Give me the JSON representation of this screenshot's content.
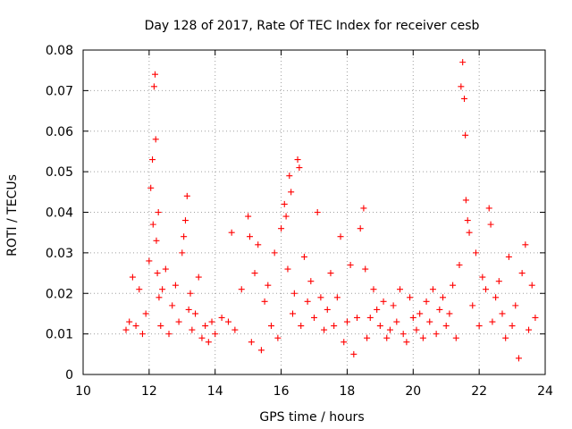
{
  "chart_data": {
    "type": "scatter",
    "title": "Day 128 of 2017, Rate Of TEC Index for receiver cesb",
    "xlabel": "GPS time / hours",
    "ylabel": "ROTI / TECUs",
    "xlim": [
      10,
      24
    ],
    "ylim": [
      0,
      0.08
    ],
    "xticks": [
      "10",
      "12",
      "14",
      "16",
      "18",
      "20",
      "22",
      "24"
    ],
    "yticks": [
      "0",
      "0.01",
      "0.02",
      "0.03",
      "0.04",
      "0.05",
      "0.06",
      "0.07",
      "0.08"
    ],
    "grid": true,
    "marker": "+",
    "color": "#ff0000",
    "series": [
      {
        "name": "ROTI",
        "x": [
          11.3,
          11.4,
          11.5,
          11.6,
          11.7,
          11.8,
          11.9,
          12.0,
          12.05,
          12.1,
          12.12,
          12.15,
          12.18,
          12.2,
          12.22,
          12.25,
          12.28,
          12.3,
          12.35,
          12.4,
          12.5,
          12.6,
          12.7,
          12.8,
          12.9,
          13.0,
          13.05,
          13.1,
          13.15,
          13.2,
          13.25,
          13.3,
          13.4,
          13.5,
          13.6,
          13.7,
          13.8,
          13.9,
          14.0,
          14.2,
          14.4,
          14.5,
          14.6,
          14.8,
          15.0,
          15.05,
          15.1,
          15.2,
          15.3,
          15.4,
          15.5,
          15.6,
          15.7,
          15.8,
          15.9,
          16.0,
          16.1,
          16.15,
          16.2,
          16.25,
          16.3,
          16.35,
          16.4,
          16.5,
          16.55,
          16.6,
          16.7,
          16.8,
          16.9,
          17.0,
          17.1,
          17.2,
          17.3,
          17.4,
          17.5,
          17.6,
          17.7,
          17.8,
          17.9,
          18.0,
          18.1,
          18.2,
          18.3,
          18.4,
          18.5,
          18.55,
          18.6,
          18.7,
          18.8,
          18.9,
          19.0,
          19.1,
          19.2,
          19.3,
          19.4,
          19.5,
          19.6,
          19.7,
          19.8,
          19.9,
          20.0,
          20.1,
          20.2,
          20.3,
          20.4,
          20.5,
          20.6,
          20.7,
          20.8,
          20.9,
          21.0,
          21.1,
          21.2,
          21.3,
          21.4,
          21.45,
          21.5,
          21.55,
          21.58,
          21.6,
          21.65,
          21.7,
          21.8,
          21.9,
          22.0,
          22.1,
          22.2,
          22.3,
          22.35,
          22.4,
          22.5,
          22.6,
          22.7,
          22.8,
          22.9,
          23.0,
          23.1,
          23.2,
          23.3,
          23.4,
          23.5,
          23.6,
          23.7
        ],
        "y": [
          0.011,
          0.013,
          0.024,
          0.012,
          0.021,
          0.01,
          0.015,
          0.028,
          0.046,
          0.053,
          0.037,
          0.071,
          0.074,
          0.058,
          0.033,
          0.025,
          0.04,
          0.019,
          0.012,
          0.021,
          0.026,
          0.01,
          0.017,
          0.022,
          0.013,
          0.03,
          0.034,
          0.038,
          0.044,
          0.016,
          0.02,
          0.011,
          0.015,
          0.024,
          0.009,
          0.012,
          0.008,
          0.013,
          0.01,
          0.014,
          0.013,
          0.035,
          0.011,
          0.021,
          0.039,
          0.034,
          0.008,
          0.025,
          0.032,
          0.006,
          0.018,
          0.022,
          0.012,
          0.03,
          0.009,
          0.036,
          0.042,
          0.039,
          0.026,
          0.049,
          0.045,
          0.015,
          0.02,
          0.053,
          0.051,
          0.012,
          0.029,
          0.018,
          0.023,
          0.014,
          0.04,
          0.019,
          0.011,
          0.016,
          0.025,
          0.012,
          0.019,
          0.034,
          0.008,
          0.013,
          0.027,
          0.005,
          0.014,
          0.036,
          0.041,
          0.026,
          0.009,
          0.014,
          0.021,
          0.016,
          0.012,
          0.018,
          0.009,
          0.011,
          0.017,
          0.013,
          0.021,
          0.01,
          0.008,
          0.019,
          0.014,
          0.011,
          0.015,
          0.009,
          0.018,
          0.013,
          0.021,
          0.01,
          0.016,
          0.019,
          0.012,
          0.015,
          0.022,
          0.009,
          0.027,
          0.071,
          0.077,
          0.068,
          0.059,
          0.043,
          0.038,
          0.035,
          0.017,
          0.03,
          0.012,
          0.024,
          0.021,
          0.041,
          0.037,
          0.013,
          0.019,
          0.023,
          0.015,
          0.009,
          0.029,
          0.012,
          0.017,
          0.004,
          0.025,
          0.032,
          0.011,
          0.022,
          0.014
        ]
      }
    ]
  }
}
